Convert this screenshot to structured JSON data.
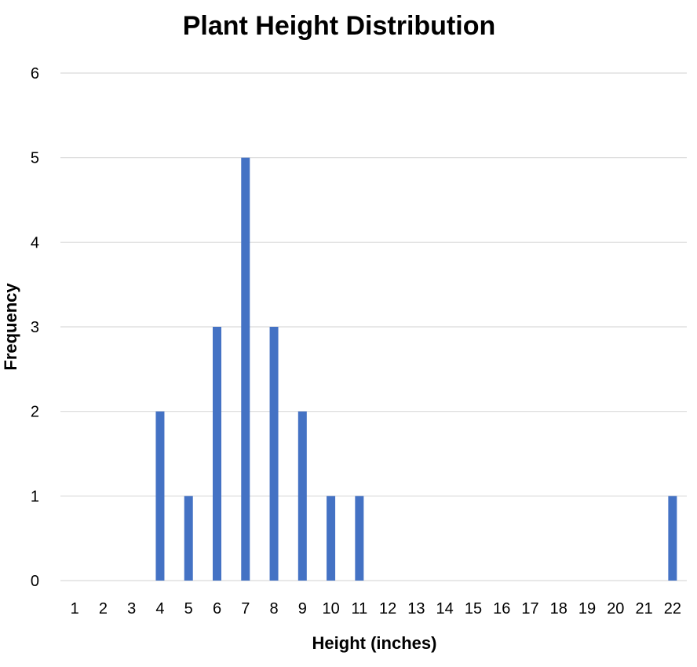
{
  "chart_data": {
    "type": "bar",
    "title": "Plant Height Distribution",
    "xlabel": "Height (inches)",
    "ylabel": "Frequency",
    "categories": [
      "1",
      "2",
      "3",
      "4",
      "5",
      "6",
      "7",
      "8",
      "9",
      "10",
      "11",
      "12",
      "13",
      "14",
      "15",
      "16",
      "17",
      "18",
      "19",
      "20",
      "21",
      "22"
    ],
    "values": [
      0,
      0,
      0,
      2,
      1,
      3,
      5,
      3,
      2,
      1,
      1,
      0,
      0,
      0,
      0,
      0,
      0,
      0,
      0,
      0,
      0,
      1
    ],
    "ylim": [
      0,
      6
    ],
    "yticks": [
      0,
      1,
      2,
      3,
      4,
      5,
      6
    ],
    "grid": true,
    "legend": "none",
    "bar_color": "#4472C4"
  }
}
